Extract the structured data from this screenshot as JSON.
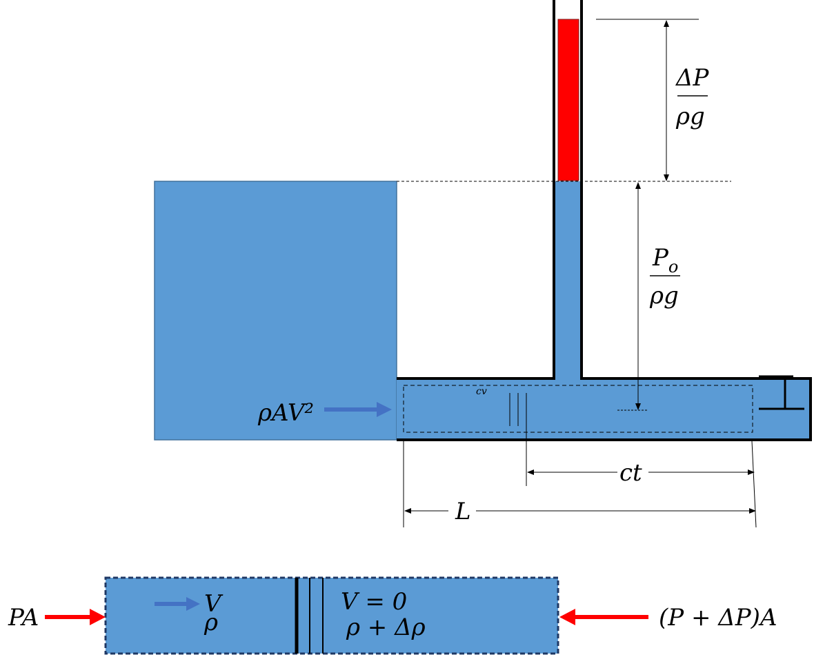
{
  "labels": {
    "delta_p_num": "ΔP",
    "delta_p_den": "ρg",
    "p_o_base": "P",
    "p_o_sub": "o",
    "p_o_den": "ρg",
    "momentum": "ρAV²",
    "control_volume": "cv",
    "wave_distance": "ct",
    "length": "L"
  },
  "lower_diagram": {
    "left_force": "PA",
    "upstream_velocity": "V",
    "upstream_density": "ρ",
    "downstream_velocity": "V = 0",
    "downstream_density": "ρ + Δρ",
    "right_force": "(P + ΔP)A"
  }
}
